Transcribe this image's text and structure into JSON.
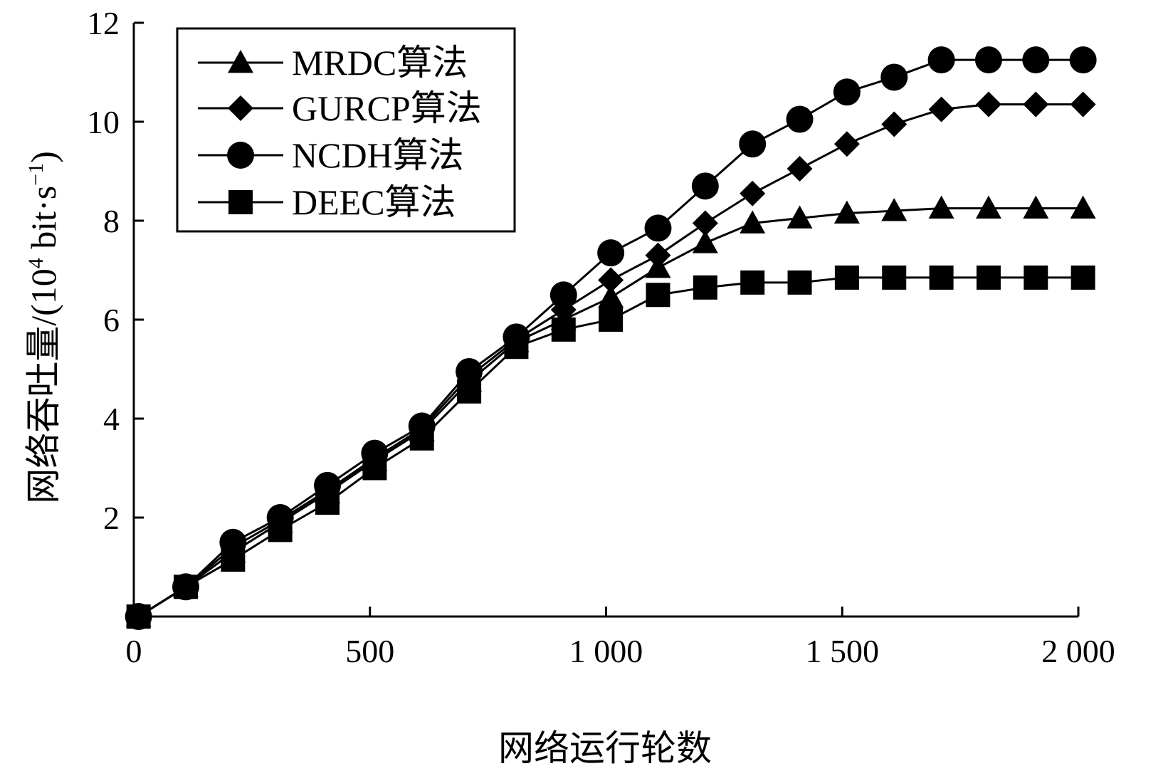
{
  "chart_data": {
    "type": "line",
    "title": "",
    "xlabel": "网络运行轮数",
    "ylabel_main": "网络吞吐量/(10",
    "ylabel_exp": "4",
    "ylabel_unit": " bit·s",
    "ylabel_unit_exp": "−1",
    "ylabel_close": ")",
    "xlim": [
      0,
      2000
    ],
    "ylim": [
      0,
      12
    ],
    "x_ticks": [
      {
        "value": 0,
        "label": "0"
      },
      {
        "value": 500,
        "label": "500"
      },
      {
        "value": 1000,
        "label": "1 000"
      },
      {
        "value": 1500,
        "label": "1 500"
      },
      {
        "value": 2000,
        "label": "2 000"
      }
    ],
    "y_ticks": [
      {
        "value": 2,
        "label": "2"
      },
      {
        "value": 4,
        "label": "4"
      },
      {
        "value": 6,
        "label": "6"
      },
      {
        "value": 8,
        "label": "8"
      },
      {
        "value": 10,
        "label": "10"
      },
      {
        "value": 12,
        "label": "12"
      }
    ],
    "grid": false,
    "legend_position": "top-left",
    "x": [
      10,
      110,
      210,
      310,
      410,
      510,
      610,
      710,
      810,
      910,
      1010,
      1110,
      1210,
      1310,
      1410,
      1510,
      1610,
      1710,
      1810,
      1910,
      2010
    ],
    "series": [
      {
        "name": "MRDC算法",
        "marker": "triangle",
        "values": [
          0,
          0.6,
          1.3,
          1.9,
          2.5,
          3.15,
          3.75,
          4.75,
          5.55,
          6.0,
          6.45,
          7.05,
          7.55,
          7.95,
          8.05,
          8.15,
          8.2,
          8.25,
          8.25,
          8.25,
          8.25
        ]
      },
      {
        "name": "GURCP算法",
        "marker": "diamond",
        "values": [
          0,
          0.6,
          1.4,
          1.95,
          2.55,
          3.2,
          3.8,
          4.85,
          5.6,
          6.2,
          6.8,
          7.3,
          7.95,
          8.55,
          9.05,
          9.55,
          9.95,
          10.25,
          10.35,
          10.35,
          10.35
        ]
      },
      {
        "name": "NCDH算法",
        "marker": "circle",
        "values": [
          0,
          0.6,
          1.5,
          2.0,
          2.65,
          3.3,
          3.85,
          4.95,
          5.65,
          6.5,
          7.35,
          7.85,
          8.7,
          9.55,
          10.05,
          10.6,
          10.9,
          11.25,
          11.25,
          11.25,
          11.25
        ]
      },
      {
        "name": "DEEC算法",
        "marker": "square",
        "values": [
          0,
          0.6,
          1.15,
          1.75,
          2.3,
          3.0,
          3.6,
          4.55,
          5.45,
          5.8,
          6.0,
          6.5,
          6.65,
          6.75,
          6.75,
          6.85,
          6.85,
          6.85,
          6.85,
          6.85,
          6.85
        ]
      }
    ]
  }
}
